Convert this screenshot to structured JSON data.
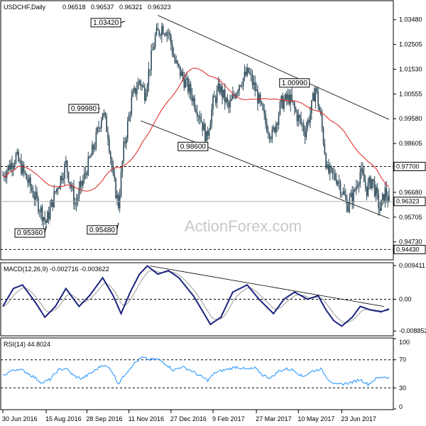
{
  "chart_data": {
    "type": "candlestick",
    "symbol": "USDCHF",
    "timeframe": "Daily",
    "ohlc_header": [
      "0.96518",
      "0.96537",
      "0.96321",
      "0.96323"
    ],
    "watermark": "ActionForex.com",
    "x_ticks": [
      "30 Jun 2016",
      "15 Aug 2016",
      "28 Sep 2016",
      "11 Nov 2016",
      "27 Dec 2016",
      "9 Feb 2017",
      "27 Mar 2017",
      "10 May 2017",
      "23 Jun 2017"
    ],
    "price_panel": {
      "ylim": [
        0.9405,
        1.042
      ],
      "y_ticks": [
        "1.03480",
        "1.02505",
        "1.01530",
        "1.00555",
        "0.99580",
        "0.98605",
        "0.97630",
        "0.96680",
        "0.95705",
        "0.94730"
      ],
      "y_tick_values": [
        1.0348,
        1.02505,
        1.0153,
        1.00555,
        0.9958,
        0.98605,
        0.9763,
        0.9668,
        0.95705,
        0.9473
      ],
      "current_price": "0.96323",
      "current_value": 0.96323,
      "horizontal_levels": [
        {
          "label": "0.97700",
          "value": 0.977
        },
        {
          "label": "0.94430",
          "value": 0.9443
        }
      ],
      "callouts": [
        {
          "label": "1.03420",
          "value": 1.0342,
          "x_index": 93
        },
        {
          "label": "1.00990",
          "value": 1.0099,
          "x_index": 222
        },
        {
          "label": "0.99980",
          "value": 0.9998,
          "x_index": 74
        },
        {
          "label": "0.98600",
          "value": 0.986,
          "x_index": 155
        },
        {
          "label": "0.95360",
          "value": 0.9536,
          "x_index": 33
        },
        {
          "label": "0.95480",
          "value": 0.9548,
          "x_index": 88
        }
      ],
      "anchors": [
        [
          0,
          0.9735
        ],
        [
          10,
          0.981
        ],
        [
          20,
          0.97
        ],
        [
          33,
          0.955
        ],
        [
          40,
          0.967
        ],
        [
          48,
          0.978
        ],
        [
          55,
          0.962
        ],
        [
          62,
          0.973
        ],
        [
          70,
          0.986
        ],
        [
          76,
          0.999
        ],
        [
          80,
          0.99
        ],
        [
          84,
          0.972
        ],
        [
          88,
          0.962
        ],
        [
          92,
          0.984
        ],
        [
          98,
          1.003
        ],
        [
          104,
          1.011
        ],
        [
          108,
          1.006
        ],
        [
          116,
          1.028
        ],
        [
          121,
          1.032
        ],
        [
          126,
          1.03
        ],
        [
          131,
          1.018
        ],
        [
          137,
          1.012
        ],
        [
          143,
          1.006
        ],
        [
          150,
          0.997
        ],
        [
          155,
          0.988
        ],
        [
          160,
          1.002
        ],
        [
          165,
          1.008
        ],
        [
          172,
          1.0
        ],
        [
          180,
          1.01
        ],
        [
          187,
          1.014
        ],
        [
          193,
          1.006
        ],
        [
          200,
          0.994
        ],
        [
          205,
          0.989
        ],
        [
          212,
          1.002
        ],
        [
          218,
          1.004
        ],
        [
          224,
          0.997
        ],
        [
          230,
          0.991
        ],
        [
          234,
          0.998
        ],
        [
          238,
          1.008
        ],
        [
          242,
          0.996
        ],
        [
          247,
          0.975
        ],
        [
          255,
          0.972
        ],
        [
          262,
          0.962
        ],
        [
          267,
          0.966
        ],
        [
          272,
          0.975
        ],
        [
          277,
          0.968
        ],
        [
          281,
          0.972
        ],
        [
          287,
          0.96
        ],
        [
          291,
          0.967
        ],
        [
          294,
          0.9632
        ]
      ],
      "trendlines": [
        {
          "from": [
            118,
            1.0365
          ],
          "to": [
            294,
            0.9955
          ]
        },
        {
          "from": [
            105,
            0.995
          ],
          "to": [
            294,
            0.9565
          ]
        }
      ]
    },
    "macd_panel": {
      "title": "MACD(12,26,9) -0.002716 -0.003622",
      "ylim": [
        -0.01,
        0.01
      ],
      "y_ticks": [
        "0.009411",
        "0.00",
        "-0.008852"
      ],
      "y_tick_values": [
        0.009411,
        0.0,
        -0.008852
      ],
      "macd_anchors": [
        [
          0,
          -0.002
        ],
        [
          8,
          0.003
        ],
        [
          15,
          0.004
        ],
        [
          25,
          -0.001
        ],
        [
          32,
          -0.005
        ],
        [
          40,
          -0.002
        ],
        [
          48,
          0.003
        ],
        [
          58,
          -0.002
        ],
        [
          66,
          0.001
        ],
        [
          76,
          0.006
        ],
        [
          84,
          0.001
        ],
        [
          90,
          -0.004
        ],
        [
          97,
          0.002
        ],
        [
          104,
          0.007
        ],
        [
          110,
          0.0093
        ],
        [
          118,
          0.007
        ],
        [
          126,
          0.008
        ],
        [
          134,
          0.006
        ],
        [
          145,
          0.001
        ],
        [
          158,
          -0.007
        ],
        [
          166,
          -0.005
        ],
        [
          175,
          0.002
        ],
        [
          186,
          0.004
        ],
        [
          195,
          0.0
        ],
        [
          206,
          -0.004
        ],
        [
          214,
          0.0
        ],
        [
          222,
          0.002
        ],
        [
          232,
          0.0
        ],
        [
          240,
          0.001
        ],
        [
          246,
          -0.003
        ],
        [
          252,
          -0.006
        ],
        [
          258,
          -0.0075
        ],
        [
          266,
          -0.005
        ],
        [
          272,
          -0.002
        ],
        [
          280,
          -0.003
        ],
        [
          288,
          -0.0035
        ],
        [
          294,
          -0.0027
        ]
      ],
      "trendline": {
        "from": [
          112,
          0.0093
        ],
        "to": [
          290,
          -0.002
        ]
      }
    },
    "rsi_panel": {
      "title": "RSI(14) 44.8024",
      "ylim": [
        0,
        100
      ],
      "y_ticks": [
        "100",
        "70",
        "30",
        "0"
      ],
      "y_tick_values": [
        100,
        70,
        30,
        0
      ],
      "levels": [
        70,
        30
      ],
      "rsi_anchors": [
        [
          0,
          47
        ],
        [
          6,
          54
        ],
        [
          12,
          57
        ],
        [
          18,
          52
        ],
        [
          24,
          45
        ],
        [
          30,
          37
        ],
        [
          36,
          42
        ],
        [
          42,
          55
        ],
        [
          48,
          58
        ],
        [
          54,
          47
        ],
        [
          60,
          43
        ],
        [
          68,
          52
        ],
        [
          76,
          63
        ],
        [
          82,
          57
        ],
        [
          88,
          36
        ],
        [
          94,
          52
        ],
        [
          100,
          65
        ],
        [
          106,
          73
        ],
        [
          112,
          70
        ],
        [
          118,
          71
        ],
        [
          124,
          64
        ],
        [
          130,
          55
        ],
        [
          136,
          60
        ],
        [
          142,
          56
        ],
        [
          150,
          47
        ],
        [
          156,
          41
        ],
        [
          162,
          52
        ],
        [
          170,
          56
        ],
        [
          178,
          60
        ],
        [
          186,
          56
        ],
        [
          192,
          58
        ],
        [
          198,
          48
        ],
        [
          204,
          44
        ],
        [
          210,
          54
        ],
        [
          216,
          57
        ],
        [
          222,
          55
        ],
        [
          228,
          46
        ],
        [
          236,
          54
        ],
        [
          242,
          57
        ],
        [
          248,
          42
        ],
        [
          254,
          34
        ],
        [
          260,
          36
        ],
        [
          266,
          38
        ],
        [
          272,
          42
        ],
        [
          278,
          35
        ],
        [
          284,
          43
        ],
        [
          290,
          46
        ],
        [
          294,
          44.8
        ]
      ]
    }
  }
}
